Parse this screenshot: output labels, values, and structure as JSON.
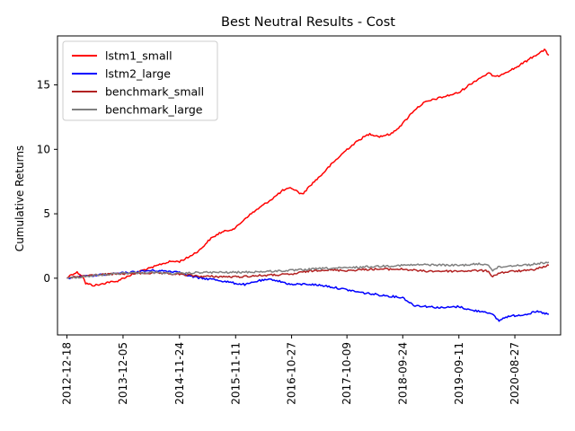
{
  "chart_data": {
    "type": "line",
    "title": "Best Neutral Results - Cost",
    "xlabel": "",
    "ylabel": "Cumulative Returns",
    "x_ticks": [
      "2012-12-18",
      "2013-12-05",
      "2014-11-24",
      "2015-11-11",
      "2016-10-27",
      "2017-10-09",
      "2018-09-24",
      "2019-09-11",
      "2020-08-27"
    ],
    "y_ticks": [
      0,
      5,
      10,
      15
    ],
    "xlim": [
      "2012-10-20",
      "2021-06-10"
    ],
    "ylim": [
      -4.4,
      18.8
    ],
    "grid": false,
    "legend_position": "top-left",
    "series": [
      {
        "name": "lstm1_small",
        "color": "#ff0000",
        "points": [
          [
            "2012-12-18",
            0.0
          ],
          [
            "2013-01-15",
            0.3
          ],
          [
            "2013-02-20",
            0.45
          ],
          [
            "2013-03-25",
            0.2
          ],
          [
            "2013-04-15",
            -0.4
          ],
          [
            "2013-06-01",
            -0.55
          ],
          [
            "2013-07-15",
            -0.5
          ],
          [
            "2013-09-01",
            -0.3
          ],
          [
            "2013-10-15",
            -0.3
          ],
          [
            "2013-12-05",
            0.0
          ],
          [
            "2014-02-01",
            0.3
          ],
          [
            "2014-04-01",
            0.6
          ],
          [
            "2014-06-01",
            0.8
          ],
          [
            "2014-08-01",
            1.1
          ],
          [
            "2014-10-01",
            1.3
          ],
          [
            "2014-11-24",
            1.3
          ],
          [
            "2015-01-15",
            1.6
          ],
          [
            "2015-04-01",
            2.2
          ],
          [
            "2015-06-01",
            3.0
          ],
          [
            "2015-08-01",
            3.5
          ],
          [
            "2015-11-11",
            3.9
          ],
          [
            "2016-01-15",
            4.7
          ],
          [
            "2016-04-01",
            5.4
          ],
          [
            "2016-07-01",
            6.2
          ],
          [
            "2016-09-01",
            6.8
          ],
          [
            "2016-10-27",
            7.0
          ],
          [
            "2017-01-01",
            6.5
          ],
          [
            "2017-03-01",
            7.3
          ],
          [
            "2017-05-01",
            8.0
          ],
          [
            "2017-07-01",
            8.8
          ],
          [
            "2017-10-09",
            10.0
          ],
          [
            "2018-01-01",
            10.8
          ],
          [
            "2018-03-01",
            11.2
          ],
          [
            "2018-05-01",
            11.0
          ],
          [
            "2018-07-15",
            11.2
          ],
          [
            "2018-09-24",
            12.0
          ],
          [
            "2018-12-01",
            13.0
          ],
          [
            "2019-02-01",
            13.6
          ],
          [
            "2019-04-15",
            13.9
          ],
          [
            "2019-06-15",
            14.1
          ],
          [
            "2019-09-11",
            14.4
          ],
          [
            "2019-11-15",
            15.0
          ],
          [
            "2020-01-15",
            15.5
          ],
          [
            "2020-03-15",
            15.9
          ],
          [
            "2020-05-01",
            15.6
          ],
          [
            "2020-06-15",
            15.9
          ],
          [
            "2020-08-27",
            16.3
          ],
          [
            "2020-11-01",
            16.8
          ],
          [
            "2021-01-15",
            17.4
          ],
          [
            "2021-03-01",
            17.7
          ],
          [
            "2021-03-28",
            17.3
          ]
        ]
      },
      {
        "name": "lstm2_large",
        "color": "#0000ff",
        "points": [
          [
            "2012-12-18",
            0.0
          ],
          [
            "2013-03-01",
            0.1
          ],
          [
            "2013-06-01",
            0.2
          ],
          [
            "2013-09-01",
            0.3
          ],
          [
            "2013-12-05",
            0.4
          ],
          [
            "2014-03-01",
            0.5
          ],
          [
            "2014-06-01",
            0.6
          ],
          [
            "2014-09-01",
            0.55
          ],
          [
            "2014-11-24",
            0.5
          ],
          [
            "2015-01-15",
            0.2
          ],
          [
            "2015-04-01",
            0.0
          ],
          [
            "2015-07-01",
            -0.1
          ],
          [
            "2015-11-11",
            -0.4
          ],
          [
            "2016-01-15",
            -0.5
          ],
          [
            "2016-04-01",
            -0.2
          ],
          [
            "2016-07-01",
            -0.1
          ],
          [
            "2016-10-27",
            -0.5
          ],
          [
            "2017-02-01",
            -0.45
          ],
          [
            "2017-06-01",
            -0.6
          ],
          [
            "2017-10-09",
            -0.9
          ],
          [
            "2018-01-01",
            -1.1
          ],
          [
            "2018-05-01",
            -1.3
          ],
          [
            "2018-09-24",
            -1.5
          ],
          [
            "2018-12-01",
            -2.1
          ],
          [
            "2019-03-01",
            -2.2
          ],
          [
            "2019-06-01",
            -2.3
          ],
          [
            "2019-09-11",
            -2.2
          ],
          [
            "2019-12-01",
            -2.5
          ],
          [
            "2020-03-01",
            -2.6
          ],
          [
            "2020-04-15",
            -2.9
          ],
          [
            "2020-05-20",
            -3.3
          ],
          [
            "2020-07-01",
            -3.0
          ],
          [
            "2020-08-27",
            -2.9
          ],
          [
            "2020-11-01",
            -2.8
          ],
          [
            "2021-01-15",
            -2.6
          ],
          [
            "2021-03-28",
            -2.8
          ]
        ]
      },
      {
        "name": "benchmark_small",
        "color": "#b22222",
        "points": [
          [
            "2012-12-18",
            0.0
          ],
          [
            "2013-06-01",
            0.25
          ],
          [
            "2013-12-05",
            0.35
          ],
          [
            "2014-06-01",
            0.4
          ],
          [
            "2014-11-24",
            0.3
          ],
          [
            "2015-04-01",
            0.15
          ],
          [
            "2015-11-11",
            0.1
          ],
          [
            "2016-04-01",
            0.2
          ],
          [
            "2016-10-27",
            0.3
          ],
          [
            "2017-01-15",
            0.5
          ],
          [
            "2017-05-01",
            0.65
          ],
          [
            "2017-10-09",
            0.6
          ],
          [
            "2018-03-01",
            0.7
          ],
          [
            "2018-09-24",
            0.7
          ],
          [
            "2019-02-01",
            0.55
          ],
          [
            "2019-09-11",
            0.55
          ],
          [
            "2020-01-15",
            0.6
          ],
          [
            "2020-03-15",
            0.55
          ],
          [
            "2020-04-10",
            0.1
          ],
          [
            "2020-05-15",
            0.4
          ],
          [
            "2020-08-27",
            0.55
          ],
          [
            "2020-12-01",
            0.6
          ],
          [
            "2021-03-28",
            1.0
          ]
        ]
      },
      {
        "name": "benchmark_large",
        "color": "#808080",
        "points": [
          [
            "2012-12-18",
            0.0
          ],
          [
            "2013-06-01",
            0.2
          ],
          [
            "2013-12-05",
            0.4
          ],
          [
            "2014-06-01",
            0.45
          ],
          [
            "2014-11-24",
            0.35
          ],
          [
            "2015-04-01",
            0.45
          ],
          [
            "2015-11-11",
            0.45
          ],
          [
            "2016-04-01",
            0.5
          ],
          [
            "2016-10-27",
            0.6
          ],
          [
            "2017-05-01",
            0.75
          ],
          [
            "2017-10-09",
            0.8
          ],
          [
            "2018-03-01",
            0.9
          ],
          [
            "2018-09-24",
            1.0
          ],
          [
            "2019-02-01",
            1.05
          ],
          [
            "2019-09-11",
            1.0
          ],
          [
            "2020-01-15",
            1.1
          ],
          [
            "2020-03-15",
            1.05
          ],
          [
            "2020-04-10",
            0.6
          ],
          [
            "2020-05-15",
            0.85
          ],
          [
            "2020-08-27",
            1.0
          ],
          [
            "2020-12-01",
            1.05
          ],
          [
            "2021-03-28",
            1.25
          ]
        ]
      }
    ]
  }
}
